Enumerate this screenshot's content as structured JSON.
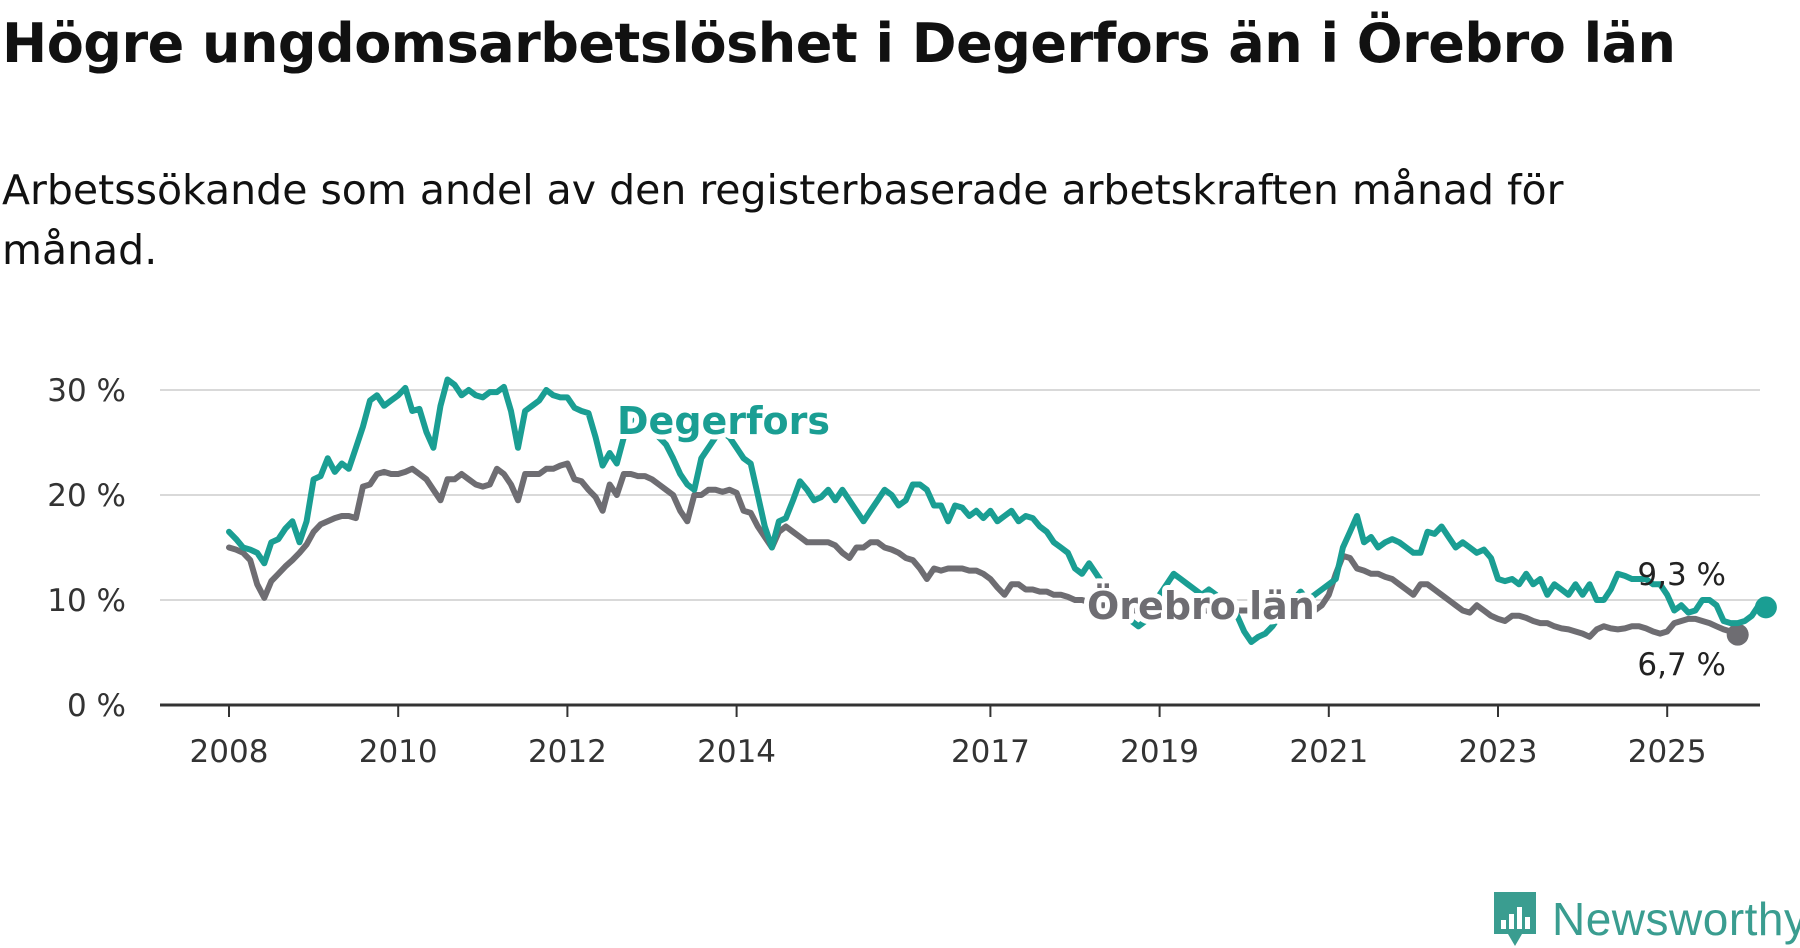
{
  "title": "Högre ungdomsarbetslöshet i Degerfors än i Örebro län",
  "subtitle": "Arbetssökande som andel av den registerbaserade arbetskraften månad för månad.",
  "brand": {
    "name": "Newsworthy",
    "icon": "bar-chart-speech-bubble-icon",
    "color": "#3a9d90"
  },
  "chart_data": {
    "type": "line",
    "x_start": "2008-01",
    "x_ticks": [
      "2008",
      "2010",
      "2012",
      "2014",
      "2017",
      "2019",
      "2021",
      "2023",
      "2025"
    ],
    "y_ticks": [
      "0 %",
      "10 %",
      "20 %",
      "30 %"
    ],
    "ylim": [
      0,
      30
    ],
    "grid": true,
    "series": [
      {
        "name": "Degerfors",
        "color": "#1a9e93",
        "end_label": "9,3 %",
        "values": [
          16.5,
          15.8,
          15.0,
          14.8,
          14.5,
          13.5,
          15.5,
          15.8,
          16.8,
          17.5,
          15.5,
          17.5,
          21.5,
          21.8,
          23.5,
          22.2,
          23.0,
          22.5,
          24.5,
          26.5,
          29.0,
          29.5,
          28.5,
          29.0,
          29.5,
          30.2,
          28.0,
          28.2,
          26.0,
          24.5,
          28.5,
          31.0,
          30.5,
          29.5,
          30.0,
          29.5,
          29.3,
          29.8,
          29.8,
          30.3,
          28.0,
          24.5,
          28.0,
          28.5,
          29.0,
          30.0,
          29.5,
          29.3,
          29.3,
          28.3,
          28.0,
          27.8,
          25.5,
          22.8,
          24.0,
          23.0,
          25.5,
          26.5,
          27.5,
          27.5,
          27.0,
          25.5,
          24.8,
          23.5,
          22.0,
          21.0,
          20.5,
          23.5,
          24.5,
          25.5,
          26.0,
          25.5,
          24.5,
          23.5,
          23.0,
          20.0,
          17.0,
          15.0,
          17.5,
          17.8,
          19.5,
          21.3,
          20.5,
          19.5,
          19.8,
          20.5,
          19.5,
          20.5,
          19.5,
          18.5,
          17.5,
          18.5,
          19.5,
          20.5,
          20.0,
          19.0,
          19.5,
          21.0,
          21.0,
          20.5,
          19.0,
          19.0,
          17.5,
          19.0,
          18.8,
          18.0,
          18.5,
          17.8,
          18.5,
          17.5,
          18.0,
          18.5,
          17.5,
          18.0,
          17.8,
          17.0,
          16.5,
          15.5,
          15.0,
          14.5,
          13.0,
          12.5,
          13.5,
          12.5,
          11.5,
          11.0,
          10.0,
          9.0,
          8.0,
          7.5,
          8.0,
          9.0,
          10.5,
          11.5,
          12.5,
          12.0,
          11.5,
          11.0,
          10.5,
          11.0,
          10.5,
          9.5,
          9.0,
          8.5,
          7.0,
          6.0,
          6.5,
          6.8,
          7.5,
          8.5,
          9.5,
          10.0,
          10.8,
          10.0,
          10.5,
          11.0,
          11.5,
          12.0,
          15.0,
          16.5,
          18.0,
          15.5,
          16.0,
          15.0,
          15.5,
          15.8,
          15.5,
          15.0,
          14.5,
          14.5,
          16.5,
          16.3,
          17.0,
          16.0,
          15.0,
          15.5,
          15.0,
          14.5,
          14.8,
          14.0,
          12.0,
          11.8,
          12.0,
          11.5,
          12.5,
          11.5,
          12.0,
          10.5,
          11.5,
          11.0,
          10.5,
          11.5,
          10.5,
          11.5,
          10.0,
          10.0,
          11.0,
          12.5,
          12.3,
          12.0,
          12.0,
          12.0,
          11.5,
          11.5,
          10.5,
          9.0,
          9.5,
          8.8,
          9.0,
          10.0,
          10.0,
          9.5,
          8.0,
          7.8,
          7.8,
          8.0,
          8.5,
          9.5,
          9.3
        ]
      },
      {
        "name": "Örebro län",
        "color": "#6e6d72",
        "end_label": "6,7 %",
        "values": [
          15.0,
          14.8,
          14.5,
          13.8,
          11.5,
          10.2,
          11.8,
          12.5,
          13.2,
          13.8,
          14.5,
          15.3,
          16.5,
          17.2,
          17.5,
          17.8,
          18.0,
          18.0,
          17.8,
          20.8,
          21.0,
          22.0,
          22.2,
          22.0,
          22.0,
          22.2,
          22.5,
          22.0,
          21.5,
          20.5,
          19.5,
          21.5,
          21.5,
          22.0,
          21.5,
          21.0,
          20.8,
          21.0,
          22.5,
          22.0,
          21.0,
          19.5,
          22.0,
          22.0,
          22.0,
          22.5,
          22.5,
          22.8,
          23.0,
          21.5,
          21.3,
          20.5,
          19.8,
          18.5,
          21.0,
          20.0,
          22.0,
          22.0,
          21.8,
          21.8,
          21.5,
          21.0,
          20.5,
          20.0,
          18.5,
          17.5,
          20.0,
          20.0,
          20.5,
          20.5,
          20.3,
          20.5,
          20.2,
          18.5,
          18.3,
          17.0,
          16.0,
          15.0,
          16.5,
          17.0,
          16.5,
          16.0,
          15.5,
          15.5,
          15.5,
          15.5,
          15.2,
          14.5,
          14.0,
          15.0,
          15.0,
          15.5,
          15.5,
          15.0,
          14.8,
          14.5,
          14.0,
          13.8,
          13.0,
          12.0,
          13.0,
          12.8,
          13.0,
          13.0,
          13.0,
          12.8,
          12.8,
          12.5,
          12.0,
          11.2,
          10.5,
          11.5,
          11.5,
          11.0,
          11.0,
          10.8,
          10.8,
          10.5,
          10.5,
          10.3,
          10.0,
          10.0,
          9.8,
          9.5,
          9.5,
          9.5,
          9.2,
          9.0,
          9.0,
          9.0,
          9.0,
          9.0,
          9.0,
          9.0,
          9.0,
          9.0,
          9.0,
          9.0,
          9.0,
          9.0,
          9.0,
          9.0,
          9.0,
          9.0,
          9.0,
          9.0,
          9.0,
          9.0,
          9.0,
          9.0,
          9.0,
          9.0,
          9.0,
          9.0,
          9.0,
          9.5,
          10.5,
          12.5,
          14.2,
          14.0,
          13.0,
          12.8,
          12.5,
          12.5,
          12.2,
          12.0,
          11.5,
          11.0,
          10.5,
          11.5,
          11.5,
          11.0,
          10.5,
          10.0,
          9.5,
          9.0,
          8.8,
          9.5,
          9.0,
          8.5,
          8.2,
          8.0,
          8.5,
          8.5,
          8.3,
          8.0,
          7.8,
          7.8,
          7.5,
          7.3,
          7.2,
          7.0,
          6.8,
          6.5,
          7.2,
          7.5,
          7.3,
          7.2,
          7.3,
          7.5,
          7.5,
          7.3,
          7.0,
          6.8,
          7.0,
          7.8,
          8.0,
          8.2,
          8.2,
          8.0,
          7.8,
          7.5,
          7.2,
          7.0,
          6.7
        ]
      }
    ],
    "annotations": [
      "Degerfors",
      "Örebro län"
    ]
  }
}
